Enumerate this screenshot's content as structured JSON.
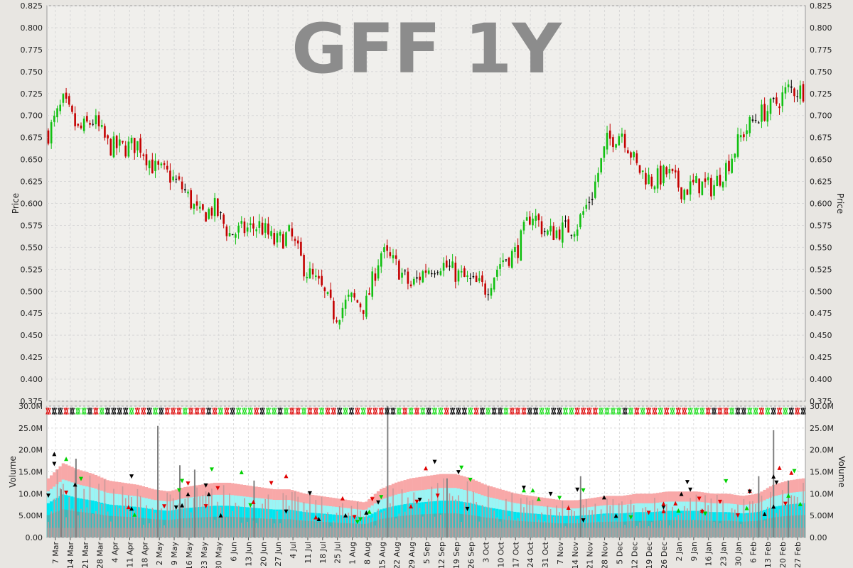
{
  "chart_data": [
    {
      "type": "candlestick",
      "title": "GFF 1Y",
      "ylabel": "Price",
      "ylim": [
        0.375,
        0.825
      ],
      "yticks": [
        "0.825",
        "0.800",
        "0.775",
        "0.750",
        "0.725",
        "0.700",
        "0.675",
        "0.650",
        "0.625",
        "0.600",
        "0.575",
        "0.550",
        "0.525",
        "0.500",
        "0.475",
        "0.450",
        "0.425",
        "0.400",
        "0.375"
      ],
      "grid": true,
      "up_color": "#11c011",
      "down_color": "#c40000",
      "neutral_color": "#000000",
      "price_path": [
        {
          "x": "7 Mar",
          "close": 0.68
        },
        {
          "x": "14 Mar",
          "close": 0.715
        },
        {
          "x": "21 Mar",
          "close": 0.682
        },
        {
          "x": "28 Mar",
          "close": 0.695
        },
        {
          "x": "4 Apr",
          "close": 0.665
        },
        {
          "x": "11 Apr",
          "close": 0.663
        },
        {
          "x": "18 Apr",
          "close": 0.668
        },
        {
          "x": "2 May",
          "close": 0.64
        },
        {
          "x": "9 May",
          "close": 0.632
        },
        {
          "x": "16 May",
          "close": 0.615
        },
        {
          "x": "23 May",
          "close": 0.585
        },
        {
          "x": "30 May",
          "close": 0.595
        },
        {
          "x": "6 Jun",
          "close": 0.565
        },
        {
          "x": "13 Jun",
          "close": 0.57
        },
        {
          "x": "20 Jun",
          "close": 0.575
        },
        {
          "x": "27 Jun",
          "close": 0.555
        },
        {
          "x": "4 Jul",
          "close": 0.565
        },
        {
          "x": "11 Jul",
          "close": 0.525
        },
        {
          "x": "18 Jul",
          "close": 0.505
        },
        {
          "x": "25 Jul",
          "close": 0.472
        },
        {
          "x": "1 Aug",
          "close": 0.492
        },
        {
          "x": "8 Aug",
          "close": 0.482
        },
        {
          "x": "15 Aug",
          "close": 0.545
        },
        {
          "x": "22 Aug",
          "close": 0.53
        },
        {
          "x": "29 Aug",
          "close": 0.505
        },
        {
          "x": "5 Sep",
          "close": 0.525
        },
        {
          "x": "12 Sep",
          "close": 0.532
        },
        {
          "x": "19 Sep",
          "close": 0.52
        },
        {
          "x": "26 Sep",
          "close": 0.51
        },
        {
          "x": "3 Oct",
          "close": 0.503
        },
        {
          "x": "10 Oct",
          "close": 0.535
        },
        {
          "x": "17 Oct",
          "close": 0.545
        },
        {
          "x": "24 Oct",
          "close": 0.59
        },
        {
          "x": "31 Oct",
          "close": 0.565
        },
        {
          "x": "7 Nov",
          "close": 0.57
        },
        {
          "x": "14 Nov",
          "close": 0.575
        },
        {
          "x": "21 Nov",
          "close": 0.61
        },
        {
          "x": "28 Nov",
          "close": 0.67
        },
        {
          "x": "5 Dec",
          "close": 0.682
        },
        {
          "x": "12 Dec",
          "close": 0.64
        },
        {
          "x": "19 Dec",
          "close": 0.625
        },
        {
          "x": "26 Dec",
          "close": 0.635
        },
        {
          "x": "2 Jan",
          "close": 0.615
        },
        {
          "x": "9 Jan",
          "close": 0.622
        },
        {
          "x": "16 Jan",
          "close": 0.618
        },
        {
          "x": "23 Jan",
          "close": 0.645
        },
        {
          "x": "30 Jan",
          "close": 0.68
        },
        {
          "x": "6 Feb",
          "close": 0.7
        },
        {
          "x": "13 Feb",
          "close": 0.71
        },
        {
          "x": "20 Feb",
          "close": 0.73
        },
        {
          "x": "27 Feb",
          "close": 0.728
        }
      ],
      "volatility": 0.012
    },
    {
      "type": "bar",
      "ylabel": "Volume",
      "ylim": [
        0,
        30000000
      ],
      "yticks": [
        "30.0M",
        "25.0M",
        "20.0M",
        "15.0M",
        "10.0M",
        "5.00M",
        "0.00"
      ],
      "bar_color": "#c89a9a",
      "spike_color": "#808080",
      "band_colors": [
        "#f8a8a8",
        "#9af5f5",
        "#00e6f0",
        "#40b8b8"
      ],
      "categories": [
        "7 Mar",
        "14 Mar",
        "21 Mar",
        "28 Mar",
        "4 Apr",
        "11 Apr",
        "18 Apr",
        "2 May",
        "9 May",
        "16 May",
        "23 May",
        "30 May",
        "6 Jun",
        "13 Jun",
        "20 Jun",
        "27 Jun",
        "4 Jul",
        "11 Jul",
        "18 Jul",
        "25 Jul",
        "1 Aug",
        "8 Aug",
        "15 Aug",
        "22 Aug",
        "29 Aug",
        "5 Sep",
        "12 Sep",
        "19 Sep",
        "26 Sep",
        "3 Oct",
        "10 Oct",
        "17 Oct",
        "24 Oct",
        "31 Oct",
        "7 Nov",
        "14 Nov",
        "21 Nov",
        "28 Nov",
        "5 Dec",
        "12 Dec",
        "19 Dec",
        "26 Dec",
        "2 Jan",
        "9 Jan",
        "16 Jan",
        "23 Jan",
        "30 Jan",
        "6 Feb",
        "13 Feb",
        "20 Feb",
        "27 Feb"
      ],
      "band_upper": [
        13.5,
        17.0,
        15.5,
        14.5,
        13.0,
        12.5,
        12.0,
        11.0,
        10.5,
        11.5,
        12.0,
        12.5,
        12.5,
        12.0,
        11.5,
        11.0,
        11.0,
        10.0,
        9.5,
        9.0,
        8.5,
        8.0,
        11.0,
        12.5,
        13.5,
        14.0,
        14.5,
        14.5,
        13.5,
        12.0,
        11.0,
        10.0,
        9.5,
        9.0,
        8.5,
        8.5,
        9.0,
        9.5,
        9.5,
        10.0,
        10.0,
        10.5,
        10.5,
        10.5,
        10.0,
        10.0,
        9.5,
        10.0,
        12.0,
        13.0,
        13.5
      ],
      "spikes": [
        {
          "x": "7 Mar",
          "v": 11.0
        },
        {
          "x": "14 Mar",
          "v": 18.0
        },
        {
          "x": "25 Apr",
          "v": 25.5
        },
        {
          "x": "9 May",
          "v": 16.5
        },
        {
          "x": "16 May",
          "v": 15.5
        },
        {
          "x": "13 Jun",
          "v": 13.0
        },
        {
          "x": "15 Aug",
          "v": 30.0
        },
        {
          "x": "12 Sep",
          "v": 13.5
        },
        {
          "x": "14 Nov",
          "v": 14.0
        },
        {
          "x": "6 Feb",
          "v": 14.0
        },
        {
          "x": "13 Feb",
          "v": 24.5
        },
        {
          "x": "20 Feb",
          "v": 13.0
        }
      ]
    }
  ],
  "xticks": [
    "7 Mar",
    "14 Mar",
    "21 Mar",
    "28 Mar",
    "4 Apr",
    "11 Apr",
    "18 Apr",
    "2 May",
    "9 May",
    "16 May",
    "23 May",
    "30 May",
    "6 Jun",
    "13 Jun",
    "20 Jun",
    "27 Jun",
    "4 Jul",
    "11 Jul",
    "18 Jul",
    "25 Jul",
    "1 Aug",
    "8 Aug",
    "15 Aug",
    "22 Aug",
    "29 Aug",
    "5 Sep",
    "12 Sep",
    "19 Sep",
    "26 Sep",
    "3 Oct",
    "10 Oct",
    "17 Oct",
    "24 Oct",
    "31 Oct",
    "7 Nov",
    "14 Nov",
    "21 Nov",
    "28 Nov",
    "5 Dec",
    "12 Dec",
    "19 Dec",
    "26 Dec",
    "2 Jan",
    "9 Jan",
    "16 Jan",
    "23 Jan",
    "30 Jan",
    "6 Feb",
    "13 Feb",
    "20 Feb",
    "27 Feb"
  ]
}
